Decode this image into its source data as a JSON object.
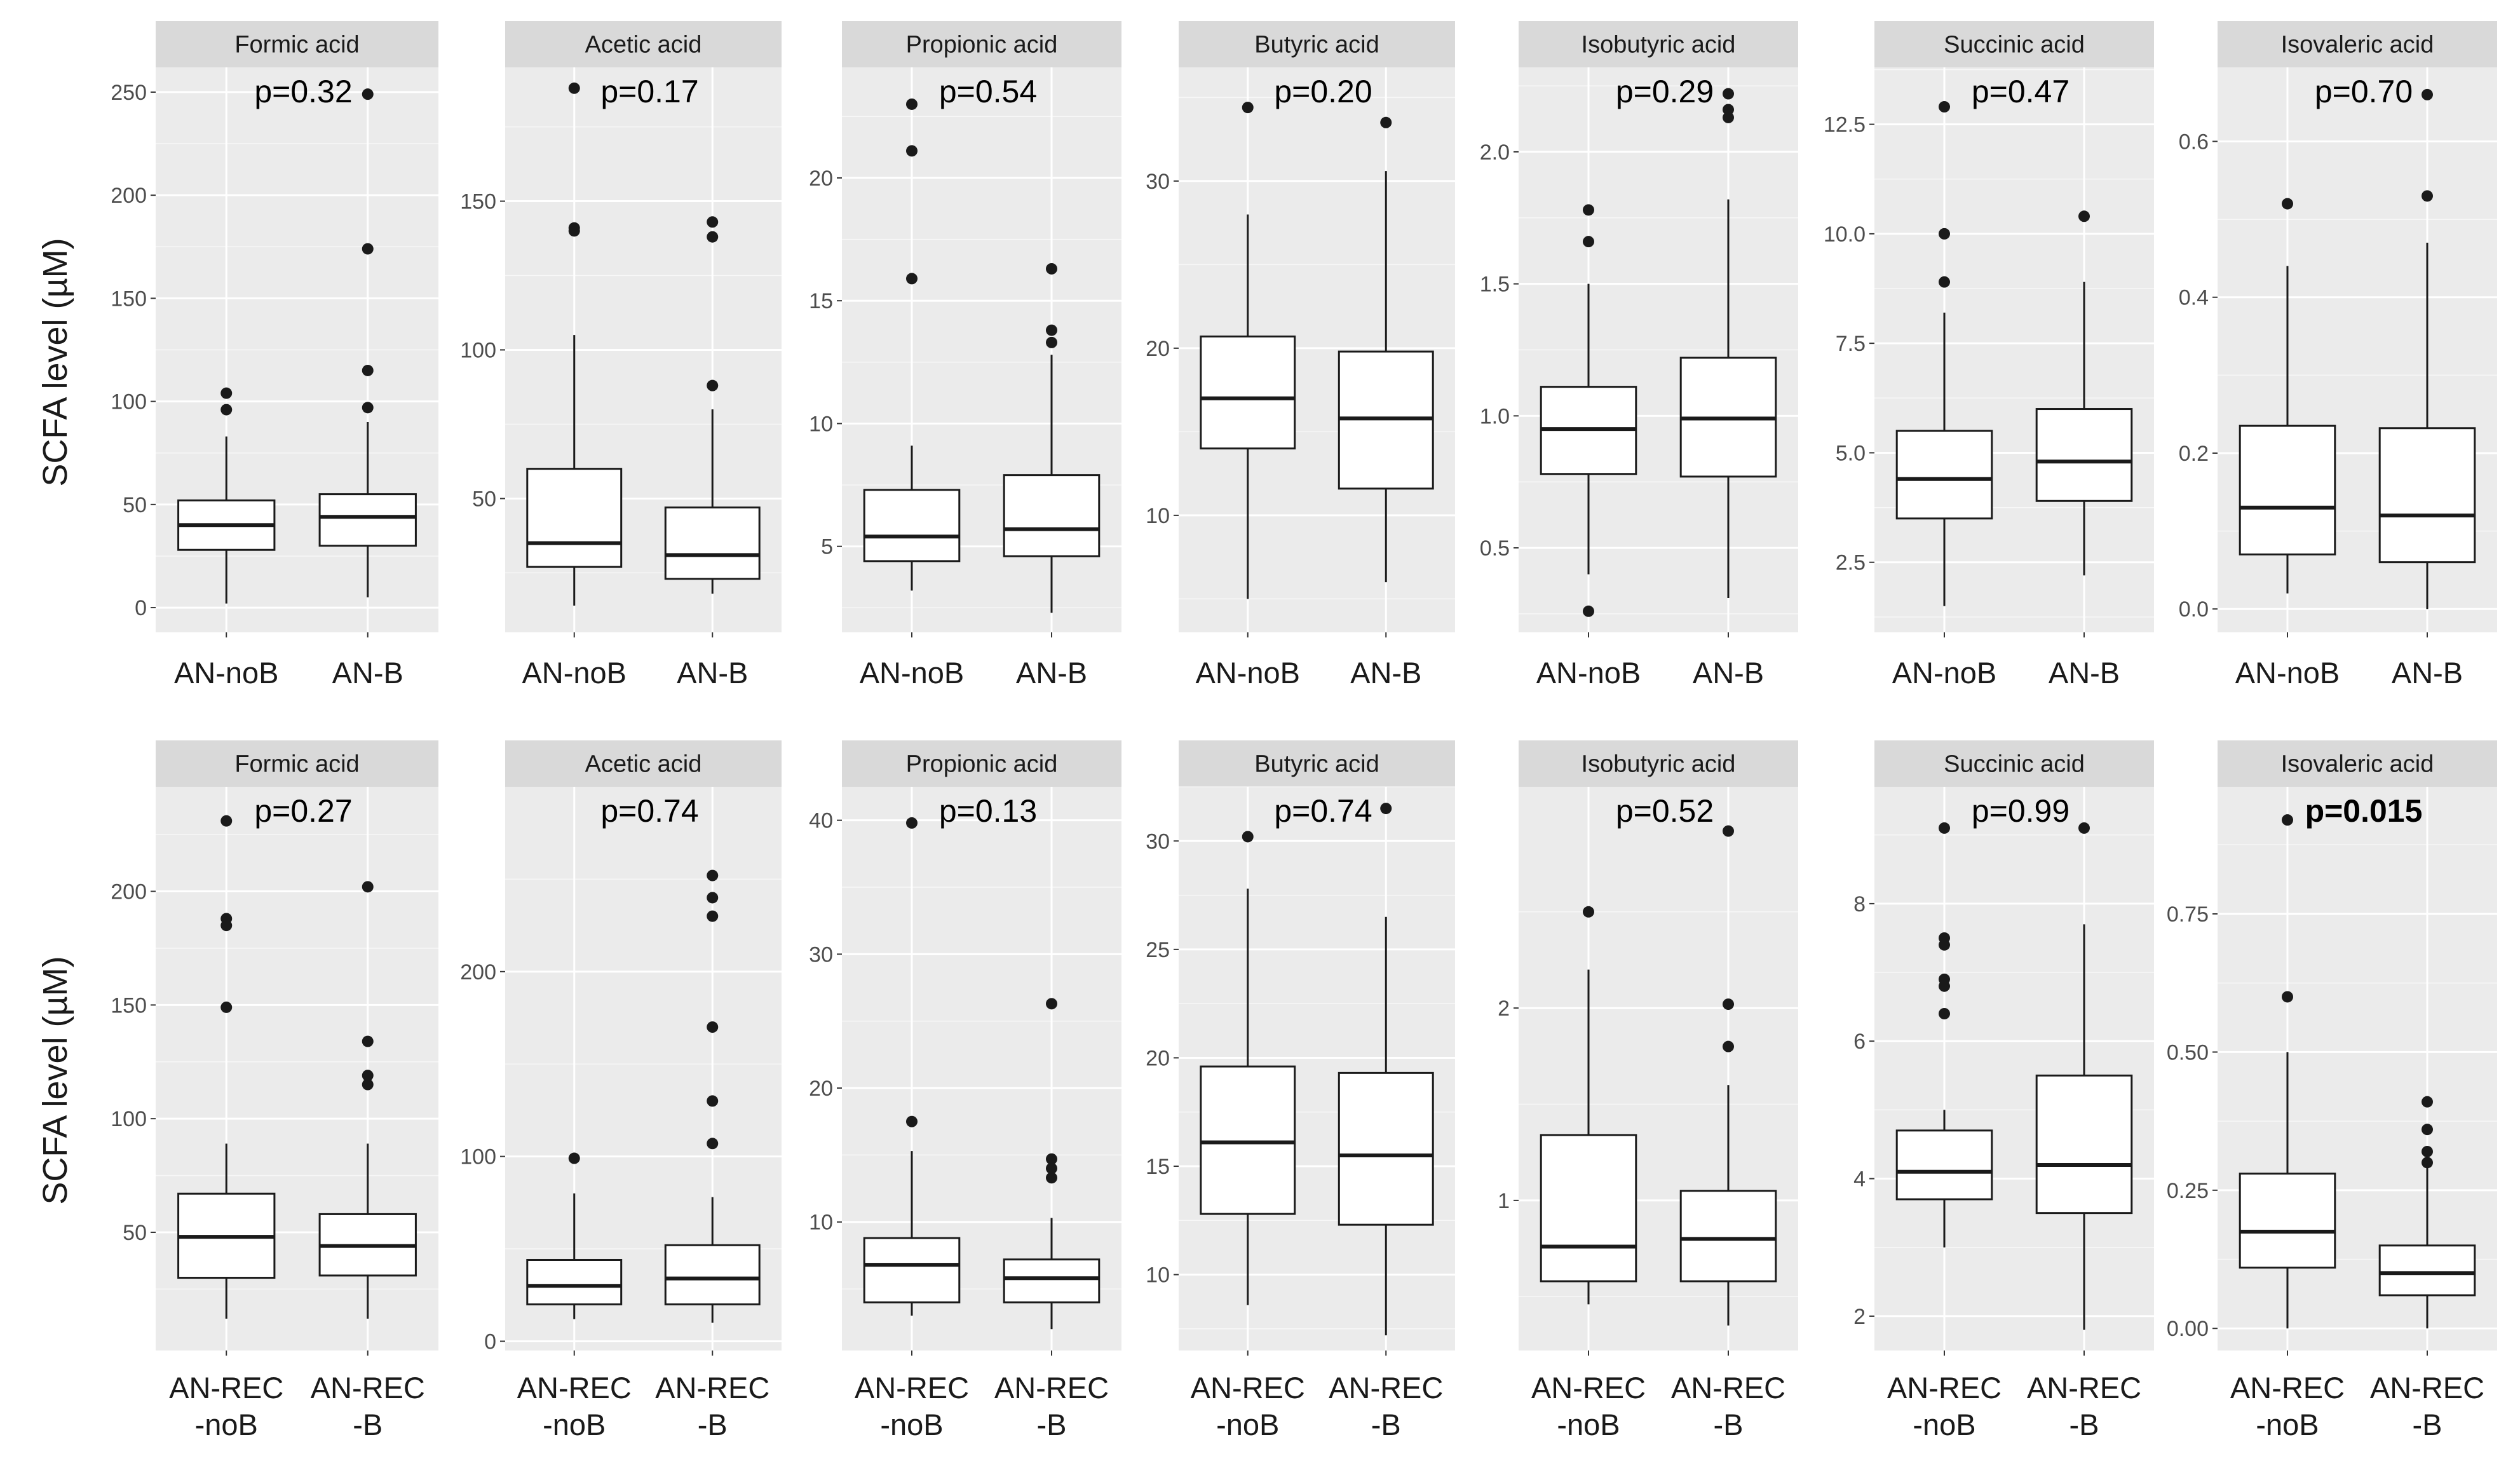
{
  "y_axis_label": "SCFA level (µM)",
  "colors": {
    "panel_bg": "#ebebeb",
    "strip_bg": "#d9d9d9",
    "grid": "#ffffff",
    "box_line": "#1a1a1a",
    "outlier": "#1a1a1a"
  },
  "chart_data": [
    {
      "type": "box",
      "row": 1,
      "title": "Formic acid",
      "categories": [
        "AN-noB",
        "AN-B"
      ],
      "p_value": "p=0.32",
      "p_bold": false,
      "y_ticks": [
        0,
        50,
        100,
        150,
        200,
        250
      ],
      "ylim": [
        -12,
        262
      ],
      "boxes": [
        {
          "min": 2,
          "q1": 28,
          "median": 40,
          "q3": 52,
          "max": 83,
          "outliers": [
            96,
            104
          ]
        },
        {
          "min": 5,
          "q1": 30,
          "median": 44,
          "q3": 55,
          "max": 90,
          "outliers": [
            97,
            115,
            174,
            249
          ]
        }
      ]
    },
    {
      "type": "box",
      "row": 1,
      "title": "Acetic acid",
      "categories": [
        "AN-noB",
        "AN-B"
      ],
      "p_value": "p=0.17",
      "p_bold": false,
      "y_ticks": [
        50,
        100,
        150
      ],
      "ylim": [
        5,
        195
      ],
      "boxes": [
        {
          "min": 14,
          "q1": 27,
          "median": 35,
          "q3": 60,
          "max": 105,
          "outliers": [
            140,
            141,
            188
          ]
        },
        {
          "min": 18,
          "q1": 23,
          "median": 31,
          "q3": 47,
          "max": 80,
          "outliers": [
            88,
            138,
            143
          ]
        }
      ]
    },
    {
      "type": "box",
      "row": 1,
      "title": "Propionic acid",
      "categories": [
        "AN-noB",
        "AN-B"
      ],
      "p_value": "p=0.54",
      "p_bold": false,
      "y_ticks": [
        5,
        10,
        15,
        20
      ],
      "ylim": [
        1.5,
        24.5
      ],
      "boxes": [
        {
          "min": 3.2,
          "q1": 4.4,
          "median": 5.4,
          "q3": 7.3,
          "max": 9.1,
          "outliers": [
            15.9,
            21.1,
            23
          ]
        },
        {
          "min": 2.3,
          "q1": 4.6,
          "median": 5.7,
          "q3": 7.9,
          "max": 12.8,
          "outliers": [
            13.3,
            13.8,
            16.3
          ]
        }
      ]
    },
    {
      "type": "box",
      "row": 1,
      "title": "Butyric acid",
      "categories": [
        "AN-noB",
        "AN-B"
      ],
      "p_value": "p=0.20",
      "p_bold": false,
      "y_ticks": [
        10,
        20,
        30
      ],
      "ylim": [
        3,
        36.8
      ],
      "boxes": [
        {
          "min": 5,
          "q1": 14,
          "median": 17,
          "q3": 20.7,
          "max": 28,
          "outliers": [
            34.4
          ]
        },
        {
          "min": 6,
          "q1": 11.6,
          "median": 15.8,
          "q3": 19.8,
          "max": 30.6,
          "outliers": [
            33.5
          ]
        }
      ]
    },
    {
      "type": "box",
      "row": 1,
      "title": "Isobutyric acid",
      "categories": [
        "AN-noB",
        "AN-B"
      ],
      "p_value": "p=0.29",
      "p_bold": false,
      "y_ticks": [
        0.5,
        1.0,
        1.5,
        2.0
      ],
      "ylim": [
        0.18,
        2.32
      ],
      "boxes": [
        {
          "min": 0.4,
          "q1": 0.78,
          "median": 0.95,
          "q3": 1.11,
          "max": 1.5,
          "outliers": [
            0.26,
            1.66,
            1.78
          ]
        },
        {
          "min": 0.31,
          "q1": 0.77,
          "median": 0.99,
          "q3": 1.22,
          "max": 1.82,
          "outliers": [
            2.13,
            2.16,
            2.22
          ]
        }
      ]
    },
    {
      "type": "box",
      "row": 1,
      "title": "Succinic acid",
      "categories": [
        "AN-noB",
        "AN-B"
      ],
      "p_value": "p=0.47",
      "p_bold": false,
      "y_ticks": [
        2.5,
        5.0,
        7.5,
        10.0,
        12.5
      ],
      "ylim": [
        0.9,
        13.8
      ],
      "boxes": [
        {
          "min": 1.5,
          "q1": 3.5,
          "median": 4.4,
          "q3": 5.5,
          "max": 8.2,
          "outliers": [
            8.9,
            10,
            12.9
          ]
        },
        {
          "min": 2.2,
          "q1": 3.9,
          "median": 4.8,
          "q3": 6,
          "max": 8.9,
          "outliers": [
            10.4
          ]
        }
      ]
    },
    {
      "type": "box",
      "row": 1,
      "title": "Isovaleric acid",
      "categories": [
        "AN-noB",
        "AN-B"
      ],
      "p_value": "p=0.70",
      "p_bold": false,
      "y_ticks": [
        0.0,
        0.2,
        0.4,
        0.6
      ],
      "ylim": [
        -0.03,
        0.695
      ],
      "boxes": [
        {
          "min": 0.02,
          "q1": 0.07,
          "median": 0.13,
          "q3": 0.235,
          "max": 0.44,
          "outliers": [
            0.52
          ]
        },
        {
          "min": 0.0,
          "q1": 0.06,
          "median": 0.12,
          "q3": 0.232,
          "max": 0.47,
          "outliers": [
            0.53,
            0.66
          ]
        }
      ]
    },
    {
      "type": "box",
      "row": 2,
      "title": "Formic acid",
      "categories": [
        "AN-REC\n-noB",
        "AN-REC\n-B"
      ],
      "p_value": "p=0.27",
      "p_bold": false,
      "y_ticks": [
        50,
        100,
        150,
        200
      ],
      "ylim": [
        -2,
        246
      ],
      "boxes": [
        {
          "min": 12,
          "q1": 30,
          "median": 48,
          "q3": 67,
          "max": 89,
          "outliers": [
            149,
            185,
            188,
            231
          ]
        },
        {
          "min": 12,
          "q1": 31,
          "median": 44,
          "q3": 58,
          "max": 89,
          "outliers": [
            115,
            119,
            134,
            202
          ]
        }
      ]
    },
    {
      "type": "box",
      "row": 2,
      "title": "Acetic acid",
      "categories": [
        "AN-REC\n-noB",
        "AN-REC\n-B"
      ],
      "p_value": "p=0.74",
      "p_bold": false,
      "y_ticks": [
        0,
        100,
        200
      ],
      "ylim": [
        -5,
        300
      ],
      "boxes": [
        {
          "min": 12,
          "q1": 20,
          "median": 30,
          "q3": 44,
          "max": 80,
          "outliers": [
            99
          ]
        },
        {
          "min": 10,
          "q1": 20,
          "median": 34,
          "q3": 52,
          "max": 78,
          "outliers": [
            107,
            130,
            170,
            230,
            240,
            252
          ]
        }
      ]
    },
    {
      "type": "box",
      "row": 2,
      "title": "Propionic acid",
      "categories": [
        "AN-REC\n-noB",
        "AN-REC\n-B"
      ],
      "p_value": "p=0.13",
      "p_bold": false,
      "y_ticks": [
        10,
        20,
        30,
        40
      ],
      "ylim": [
        0.4,
        42.5
      ],
      "boxes": [
        {
          "min": 3,
          "q1": 4,
          "median": 6.8,
          "q3": 8.8,
          "max": 15.3,
          "outliers": [
            17.5,
            39.8
          ]
        },
        {
          "min": 2,
          "q1": 4,
          "median": 5.8,
          "q3": 7.2,
          "max": 10.3,
          "outliers": [
            13.3,
            14,
            14.7,
            26.3
          ]
        }
      ]
    },
    {
      "type": "box",
      "row": 2,
      "title": "Butyric acid",
      "categories": [
        "AN-REC\n-noB",
        "AN-REC\n-B"
      ],
      "p_value": "p=0.74",
      "p_bold": false,
      "y_ticks": [
        10,
        15,
        20,
        25,
        30
      ],
      "ylim": [
        6.5,
        32.5
      ],
      "boxes": [
        {
          "min": 8.6,
          "q1": 12.8,
          "median": 16.1,
          "q3": 19.6,
          "max": 27.8,
          "outliers": [
            30.2
          ]
        },
        {
          "min": 7.2,
          "q1": 12.3,
          "median": 15.5,
          "q3": 19.3,
          "max": 26.5,
          "outliers": [
            31.5
          ]
        }
      ]
    },
    {
      "type": "box",
      "row": 2,
      "title": "Isobutyric acid",
      "categories": [
        "AN-REC\n-noB",
        "AN-REC\n-B"
      ],
      "p_value": "p=0.52",
      "p_bold": false,
      "y_ticks": [
        1,
        2
      ],
      "ylim": [
        0.22,
        3.15
      ],
      "boxes": [
        {
          "min": 0.46,
          "q1": 0.58,
          "median": 0.76,
          "q3": 1.34,
          "max": 2.2,
          "outliers": [
            2.5
          ]
        },
        {
          "min": 0.35,
          "q1": 0.58,
          "median": 0.8,
          "q3": 1.05,
          "max": 1.6,
          "outliers": [
            1.8,
            2.02,
            2.92
          ]
        }
      ]
    },
    {
      "type": "box",
      "row": 2,
      "title": "Succinic acid",
      "categories": [
        "AN-REC\n-noB",
        "AN-REC\n-B"
      ],
      "p_value": "p=0.99",
      "p_bold": false,
      "y_ticks": [
        2,
        4,
        6,
        8
      ],
      "ylim": [
        1.5,
        9.7
      ],
      "boxes": [
        {
          "min": 3,
          "q1": 3.7,
          "median": 4.1,
          "q3": 4.7,
          "max": 5,
          "outliers": [
            6.4,
            6.8,
            6.9,
            7.4,
            7.5,
            9.1
          ]
        },
        {
          "min": 1.8,
          "q1": 3.5,
          "median": 4.2,
          "q3": 5.5,
          "max": 7.7,
          "outliers": [
            9.1
          ]
        }
      ]
    },
    {
      "type": "box",
      "row": 2,
      "title": "Isovaleric acid",
      "categories": [
        "AN-REC\n-noB",
        "AN-REC\n-B"
      ],
      "p_value": "p=0.015",
      "p_bold": true,
      "y_ticks": [
        0.0,
        0.25,
        0.5,
        0.75
      ],
      "ylim": [
        -0.04,
        0.98
      ],
      "boxes": [
        {
          "min": 0.0,
          "q1": 0.11,
          "median": 0.175,
          "q3": 0.28,
          "max": 0.5,
          "outliers": [
            0.6,
            0.92
          ]
        },
        {
          "min": 0.0,
          "q1": 0.06,
          "median": 0.1,
          "q3": 0.15,
          "max": 0.29,
          "outliers": [
            0.3,
            0.32,
            0.36,
            0.41
          ]
        }
      ]
    }
  ]
}
